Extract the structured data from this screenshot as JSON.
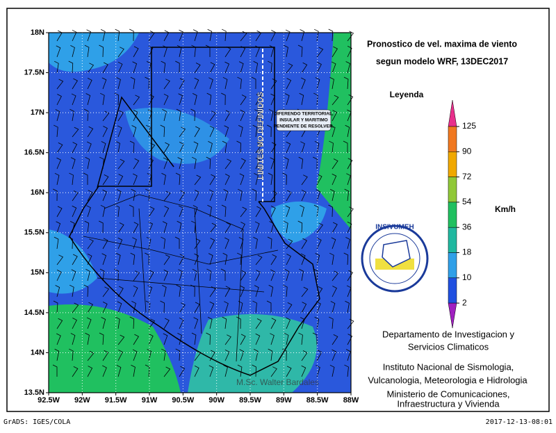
{
  "title": [
    "Pronostico de vel. maxima de viento",
    "segun modelo WRF, 13DEC2017"
  ],
  "map": {
    "lat_ticks": [
      "18N",
      "17.5N",
      "17N",
      "16.5N",
      "16N",
      "15.5N",
      "15N",
      "14.5N",
      "14N",
      "13.5N"
    ],
    "lon_ticks": [
      "92.5W",
      "92W",
      "91.5W",
      "91W",
      "90.5W",
      "90W",
      "89.5W",
      "89W",
      "88.5W",
      "88W"
    ],
    "annotations": [
      "LIMITES NO DEFINIDOS",
      "DIFERENDO TERRITORIAL,",
      "INSULAR Y MARITIMO",
      "PENDIENTE DE RESOLVER."
    ],
    "credit": "M.Sc. Walter Bardales"
  },
  "legend": {
    "title": "Leyenda",
    "unit": "Km/h",
    "levels": [
      125,
      90,
      72,
      54,
      36,
      18,
      10,
      2
    ],
    "colors": [
      "#e8308c",
      "#f07820",
      "#f0a800",
      "#90c838",
      "#20c060",
      "#20b8a0",
      "#30a0e8",
      "#2050e0",
      "#a020c0"
    ]
  },
  "logo": "INSIVUMEH",
  "institution": [
    "Departamento de Investigacion y",
    "Servicios Climaticos",
    "Instituto Nacional de Sismologia,",
    "Vulcanologia, Meteorologia e Hidrologia",
    "Ministerio de Comunicaciones,",
    "Infraestructura y Vivienda"
  ],
  "footer": {
    "left": "GrADS: IGES/COLA",
    "right": "2017-12-13-08:01"
  }
}
